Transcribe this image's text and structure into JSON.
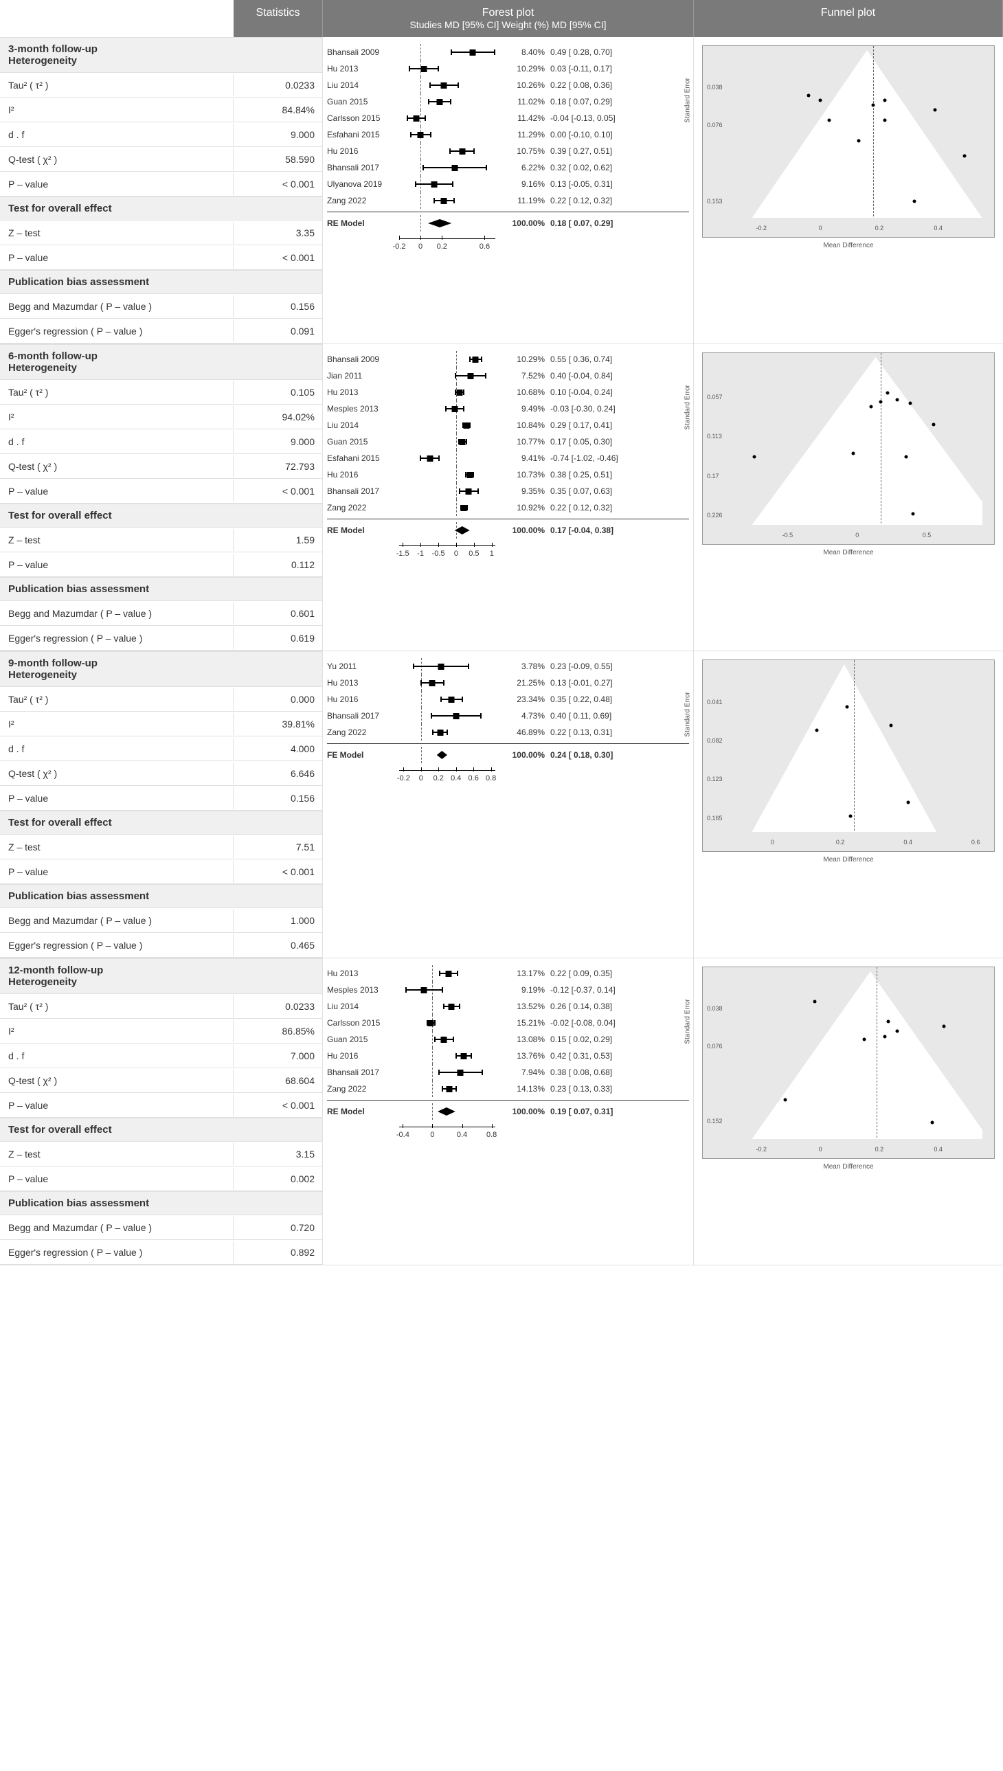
{
  "headers": {
    "stats": "Statistics",
    "forest_title": "Forest plot",
    "forest_sub": "Studies MD [95% CI] Weight (%) MD [95% CI]",
    "funnel": "Funnel plot"
  },
  "section_labels": {
    "heterogeneity": "Heterogeneity",
    "overall": "Test for overall effect",
    "bias": "Publication bias assessment"
  },
  "stat_labels": {
    "tau2": "Tau² ( τ² )",
    "i2": "I²",
    "df": "d . f",
    "qtest": "Q-test ( χ² )",
    "pvalue": "P – value",
    "ztest": "Z – test",
    "begg": "Begg and Mazumdar ( P – value )",
    "egger": "Egger's regression ( P – value )"
  },
  "funnel_labels": {
    "xlabel": "Mean Difference",
    "ylabel": "Standard Error"
  },
  "colors": {
    "header_bg": "#7a7a7a",
    "section_bg": "#f0f0f0",
    "funnel_bg": "#e8e8e8",
    "border": "#e0e0e0",
    "text": "#333333"
  },
  "panels": [
    {
      "title": "3-month follow-up",
      "stats": {
        "tau2": "0.0233",
        "i2": "84.84%",
        "df": "9.000",
        "qtest": "58.590",
        "het_p": "< 0.001",
        "ztest": "3.35",
        "eff_p": "< 0.001",
        "begg": "0.156",
        "egger": "0.091"
      },
      "forest": {
        "xlim": [
          -0.2,
          0.7
        ],
        "ticks": [
          -0.2,
          0,
          0.2,
          0.6
        ],
        "studies": [
          {
            "name": "Bhansali 2009",
            "md": 0.49,
            "lo": 0.28,
            "hi": 0.7,
            "wt": "8.40%",
            "eff": "0.49 [ 0.28, 0.70]"
          },
          {
            "name": "Hu 2013",
            "md": 0.03,
            "lo": -0.11,
            "hi": 0.17,
            "wt": "10.29%",
            "eff": "0.03 [-0.11, 0.17]"
          },
          {
            "name": "Liu 2014",
            "md": 0.22,
            "lo": 0.08,
            "hi": 0.36,
            "wt": "10.26%",
            "eff": "0.22 [ 0.08, 0.36]"
          },
          {
            "name": "Guan 2015",
            "md": 0.18,
            "lo": 0.07,
            "hi": 0.29,
            "wt": "11.02%",
            "eff": "0.18 [ 0.07, 0.29]"
          },
          {
            "name": "Carlsson 2015",
            "md": -0.04,
            "lo": -0.13,
            "hi": 0.05,
            "wt": "11.42%",
            "eff": "-0.04 [-0.13, 0.05]"
          },
          {
            "name": "Esfahani 2015",
            "md": 0.0,
            "lo": -0.1,
            "hi": 0.1,
            "wt": "11.29%",
            "eff": "0.00 [-0.10, 0.10]"
          },
          {
            "name": "Hu 2016",
            "md": 0.39,
            "lo": 0.27,
            "hi": 0.51,
            "wt": "10.75%",
            "eff": "0.39 [ 0.27, 0.51]"
          },
          {
            "name": "Bhansali 2017",
            "md": 0.32,
            "lo": 0.02,
            "hi": 0.62,
            "wt": "6.22%",
            "eff": "0.32 [ 0.02, 0.62]"
          },
          {
            "name": "Ulyanova 2019",
            "md": 0.13,
            "lo": -0.05,
            "hi": 0.31,
            "wt": "9.16%",
            "eff": "0.13 [-0.05, 0.31]"
          },
          {
            "name": "Zang 2022",
            "md": 0.22,
            "lo": 0.12,
            "hi": 0.32,
            "wt": "11.19%",
            "eff": "0.22 [ 0.12, 0.32]"
          }
        ],
        "summary": {
          "name": "RE Model",
          "md": 0.18,
          "lo": 0.07,
          "hi": 0.29,
          "wt": "100.00%",
          "eff": "0.18 [ 0.07, 0.29]"
        }
      },
      "funnel": {
        "xlim": [
          -0.3,
          0.55
        ],
        "ylim_inv": [
          0,
          0.17
        ],
        "apex_x": 0.18,
        "yticks": [
          0.038,
          0.076,
          0.153
        ],
        "xticks": [
          -0.2,
          0,
          0.2,
          0.4
        ],
        "points": [
          {
            "x": 0.49,
            "y": 0.107
          },
          {
            "x": 0.03,
            "y": 0.071
          },
          {
            "x": 0.22,
            "y": 0.071
          },
          {
            "x": 0.18,
            "y": 0.056
          },
          {
            "x": -0.04,
            "y": 0.046
          },
          {
            "x": 0.0,
            "y": 0.051
          },
          {
            "x": 0.39,
            "y": 0.061
          },
          {
            "x": 0.32,
            "y": 0.153
          },
          {
            "x": 0.13,
            "y": 0.092
          },
          {
            "x": 0.22,
            "y": 0.051
          }
        ]
      }
    },
    {
      "title": "6-month follow-up",
      "stats": {
        "tau2": "0.105",
        "i2": "94.02%",
        "df": "9.000",
        "qtest": "72.793",
        "het_p": "< 0.001",
        "ztest": "1.59",
        "eff_p": "0.112",
        "begg": "0.601",
        "egger": "0.619"
      },
      "forest": {
        "xlim": [
          -1.6,
          1.1
        ],
        "ticks": [
          -1.5,
          -1,
          -0.5,
          0,
          0.5,
          1
        ],
        "studies": [
          {
            "name": "Bhansali 2009",
            "md": 0.55,
            "lo": 0.36,
            "hi": 0.74,
            "wt": "10.29%",
            "eff": "0.55 [ 0.36, 0.74]"
          },
          {
            "name": "Jian 2011",
            "md": 0.4,
            "lo": -0.04,
            "hi": 0.84,
            "wt": "7.52%",
            "eff": "0.40 [-0.04, 0.84]"
          },
          {
            "name": "Hu 2013",
            "md": 0.1,
            "lo": -0.04,
            "hi": 0.24,
            "wt": "10.68%",
            "eff": "0.10 [-0.04, 0.24]"
          },
          {
            "name": "Mesples 2013",
            "md": -0.03,
            "lo": -0.3,
            "hi": 0.24,
            "wt": "9.49%",
            "eff": "-0.03 [-0.30, 0.24]"
          },
          {
            "name": "Liu 2014",
            "md": 0.29,
            "lo": 0.17,
            "hi": 0.41,
            "wt": "10.84%",
            "eff": "0.29 [ 0.17, 0.41]"
          },
          {
            "name": "Guan 2015",
            "md": 0.17,
            "lo": 0.05,
            "hi": 0.3,
            "wt": "10.77%",
            "eff": "0.17 [ 0.05, 0.30]"
          },
          {
            "name": "Esfahani 2015",
            "md": -0.74,
            "lo": -1.02,
            "hi": -0.46,
            "wt": "9.41%",
            "eff": "-0.74 [-1.02, -0.46]"
          },
          {
            "name": "Hu 2016",
            "md": 0.38,
            "lo": 0.25,
            "hi": 0.51,
            "wt": "10.73%",
            "eff": "0.38 [ 0.25, 0.51]"
          },
          {
            "name": "Bhansali 2017",
            "md": 0.35,
            "lo": 0.07,
            "hi": 0.63,
            "wt": "9.35%",
            "eff": "0.35 [ 0.07, 0.63]"
          },
          {
            "name": "Zang 2022",
            "md": 0.22,
            "lo": 0.12,
            "hi": 0.32,
            "wt": "10.92%",
            "eff": "0.22 [ 0.12, 0.32]"
          }
        ],
        "summary": {
          "name": "RE Model",
          "md": 0.17,
          "lo": -0.04,
          "hi": 0.38,
          "wt": "100.00%",
          "eff": "0.17 [-0.04, 0.38]"
        }
      },
      "funnel": {
        "xlim": [
          -0.9,
          0.9
        ],
        "ylim_inv": [
          0,
          0.24
        ],
        "apex_x": 0.17,
        "yticks": [
          0.057,
          0.113,
          0.17,
          0.226
        ],
        "xticks": [
          -0.5,
          0,
          0.5
        ],
        "points": [
          {
            "x": 0.55,
            "y": 0.097
          },
          {
            "x": 0.4,
            "y": 0.224
          },
          {
            "x": 0.1,
            "y": 0.071
          },
          {
            "x": -0.03,
            "y": 0.138
          },
          {
            "x": 0.29,
            "y": 0.061
          },
          {
            "x": 0.17,
            "y": 0.064
          },
          {
            "x": -0.74,
            "y": 0.143
          },
          {
            "x": 0.38,
            "y": 0.066
          },
          {
            "x": 0.35,
            "y": 0.143
          },
          {
            "x": 0.22,
            "y": 0.051
          }
        ]
      }
    },
    {
      "title": "9-month follow-up",
      "stats": {
        "tau2": "0.000",
        "i2": "39.81%",
        "df": "4.000",
        "qtest": "6.646",
        "het_p": "0.156",
        "ztest": "7.51",
        "eff_p": "< 0.001",
        "begg": "1.000",
        "egger": "0.465"
      },
      "forest": {
        "xlim": [
          -0.25,
          0.85
        ],
        "ticks": [
          -0.2,
          0,
          0.2,
          0.4,
          0.6,
          0.8
        ],
        "studies": [
          {
            "name": "Yu 2011",
            "md": 0.23,
            "lo": -0.09,
            "hi": 0.55,
            "wt": "3.78%",
            "eff": "0.23 [-0.09, 0.55]"
          },
          {
            "name": "Hu 2013",
            "md": 0.13,
            "lo": -0.01,
            "hi": 0.27,
            "wt": "21.25%",
            "eff": "0.13 [-0.01, 0.27]"
          },
          {
            "name": "Hu 2016",
            "md": 0.35,
            "lo": 0.22,
            "hi": 0.48,
            "wt": "23.34%",
            "eff": "0.35 [ 0.22, 0.48]"
          },
          {
            "name": "Bhansali 2017",
            "md": 0.4,
            "lo": 0.11,
            "hi": 0.69,
            "wt": "4.73%",
            "eff": "0.40 [ 0.11, 0.69]"
          },
          {
            "name": "Zang 2022",
            "md": 0.22,
            "lo": 0.13,
            "hi": 0.31,
            "wt": "46.89%",
            "eff": "0.22 [ 0.13, 0.31]"
          }
        ],
        "summary": {
          "name": "FE Model",
          "md": 0.24,
          "lo": 0.18,
          "hi": 0.3,
          "wt": "100.00%",
          "eff": "0.24 [ 0.18, 0.30]"
        }
      },
      "funnel": {
        "xlim": [
          -0.12,
          0.62
        ],
        "ylim_inv": [
          0,
          0.18
        ],
        "apex_x": 0.24,
        "yticks": [
          0.041,
          0.082,
          0.123,
          0.165
        ],
        "xticks": [
          0,
          0.2,
          0.4,
          0.6
        ],
        "points": [
          {
            "x": 0.23,
            "y": 0.163
          },
          {
            "x": 0.13,
            "y": 0.071
          },
          {
            "x": 0.35,
            "y": 0.066
          },
          {
            "x": 0.4,
            "y": 0.148
          },
          {
            "x": 0.22,
            "y": 0.046
          }
        ]
      }
    },
    {
      "title": "12-month follow-up",
      "stats": {
        "tau2": "0.0233",
        "i2": "86.85%",
        "df": "7.000",
        "qtest": "68.604",
        "het_p": "< 0.001",
        "ztest": "3.15",
        "eff_p": "0.002",
        "begg": "0.720",
        "egger": "0.892"
      },
      "forest": {
        "xlim": [
          -0.45,
          0.85
        ],
        "ticks": [
          -0.4,
          0,
          0.4,
          0.8
        ],
        "studies": [
          {
            "name": "Hu 2013",
            "md": 0.22,
            "lo": 0.09,
            "hi": 0.35,
            "wt": "13.17%",
            "eff": "0.22 [ 0.09, 0.35]"
          },
          {
            "name": "Mesples 2013",
            "md": -0.12,
            "lo": -0.37,
            "hi": 0.14,
            "wt": "9.19%",
            "eff": "-0.12 [-0.37, 0.14]"
          },
          {
            "name": "Liu 2014",
            "md": 0.26,
            "lo": 0.14,
            "hi": 0.38,
            "wt": "13.52%",
            "eff": "0.26 [ 0.14, 0.38]"
          },
          {
            "name": "Carlsson 2015",
            "md": -0.02,
            "lo": -0.08,
            "hi": 0.04,
            "wt": "15.21%",
            "eff": "-0.02 [-0.08, 0.04]"
          },
          {
            "name": "Guan 2015",
            "md": 0.15,
            "lo": 0.02,
            "hi": 0.29,
            "wt": "13.08%",
            "eff": "0.15 [ 0.02, 0.29]"
          },
          {
            "name": "Hu 2016",
            "md": 0.42,
            "lo": 0.31,
            "hi": 0.53,
            "wt": "13.76%",
            "eff": "0.42 [ 0.31, 0.53]"
          },
          {
            "name": "Bhansali 2017",
            "md": 0.38,
            "lo": 0.08,
            "hi": 0.68,
            "wt": "7.94%",
            "eff": "0.38 [ 0.08, 0.68]"
          },
          {
            "name": "Zang 2022",
            "md": 0.23,
            "lo": 0.13,
            "hi": 0.33,
            "wt": "14.13%",
            "eff": "0.23 [ 0.13, 0.33]"
          }
        ],
        "summary": {
          "name": "RE Model",
          "md": 0.19,
          "lo": 0.07,
          "hi": 0.31,
          "wt": "100.00%",
          "eff": "0.19 [ 0.07, 0.31]"
        }
      },
      "funnel": {
        "xlim": [
          -0.3,
          0.55
        ],
        "ylim_inv": [
          0,
          0.17
        ],
        "apex_x": 0.19,
        "yticks": [
          0.038,
          0.076,
          0.152
        ],
        "xticks": [
          -0.2,
          0,
          0.2,
          0.4
        ],
        "points": [
          {
            "x": 0.22,
            "y": 0.066
          },
          {
            "x": -0.12,
            "y": 0.13
          },
          {
            "x": 0.26,
            "y": 0.061
          },
          {
            "x": -0.02,
            "y": 0.031
          },
          {
            "x": 0.15,
            "y": 0.069
          },
          {
            "x": 0.42,
            "y": 0.056
          },
          {
            "x": 0.38,
            "y": 0.153
          },
          {
            "x": 0.23,
            "y": 0.051
          }
        ]
      }
    }
  ]
}
